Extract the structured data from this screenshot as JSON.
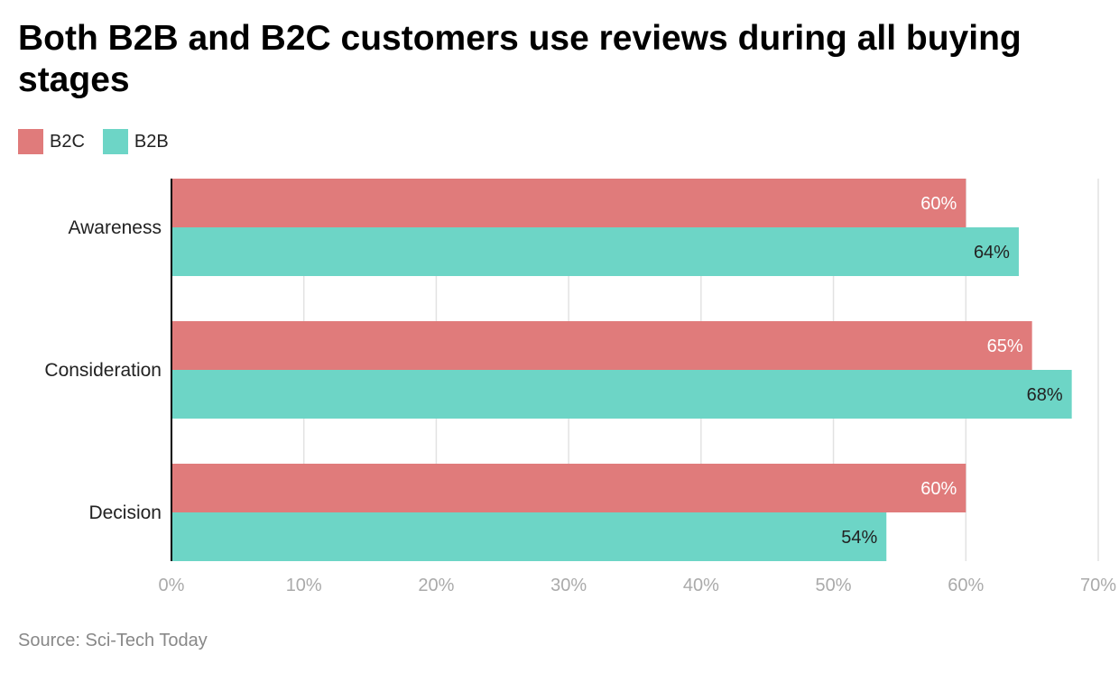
{
  "title": "Both B2B and B2C customers use reviews during all buying stages",
  "source": "Source: Sci-Tech Today",
  "colors": {
    "b2c": "#e07b7b",
    "b2b": "#6dd5c6"
  },
  "chart_data": {
    "type": "bar",
    "orientation": "horizontal",
    "title": "Both B2B and B2C customers use reviews during all buying stages",
    "categories": [
      "Awareness",
      "Consideration",
      "Decision"
    ],
    "series": [
      {
        "name": "B2C",
        "values": [
          60,
          65,
          60
        ],
        "labels": [
          "60%",
          "65%",
          "60%"
        ]
      },
      {
        "name": "B2B",
        "values": [
          64,
          68,
          54
        ],
        "labels": [
          "64%",
          "68%",
          "54%"
        ]
      }
    ],
    "xlim": [
      0,
      70
    ],
    "xticks": [
      0,
      10,
      20,
      30,
      40,
      50,
      60,
      70
    ],
    "xtick_labels": [
      "0%",
      "10%",
      "20%",
      "30%",
      "40%",
      "50%",
      "60%",
      "70%"
    ],
    "grid": true,
    "legend_position": "top-left"
  }
}
